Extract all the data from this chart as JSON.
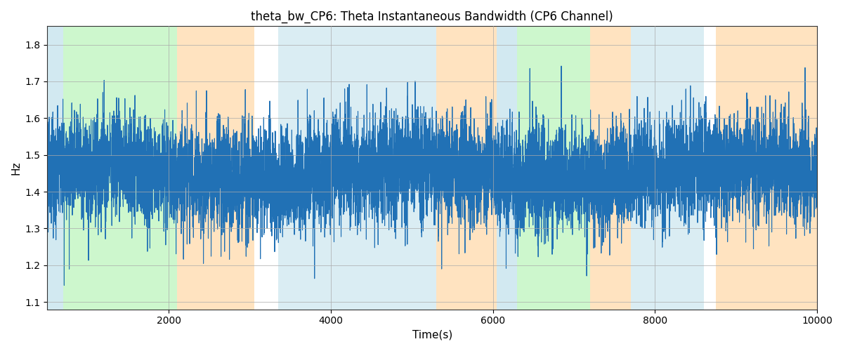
{
  "title": "theta_bw_CP6: Theta Instantaneous Bandwidth (CP6 Channel)",
  "xlabel": "Time(s)",
  "ylabel": "Hz",
  "xlim": [
    500,
    10000
  ],
  "ylim": [
    1.08,
    1.85
  ],
  "line_color": "#2171b5",
  "line_width": 0.8,
  "background_color": "#ffffff",
  "grid_color": "#aaaaaa",
  "figsize": [
    12,
    5
  ],
  "dpi": 100,
  "bands": [
    {
      "start": 500,
      "end": 700,
      "color": "#add8e6",
      "alpha": 0.55
    },
    {
      "start": 700,
      "end": 2100,
      "color": "#90ee90",
      "alpha": 0.45
    },
    {
      "start": 2100,
      "end": 3050,
      "color": "#ffd59e",
      "alpha": 0.65
    },
    {
      "start": 3350,
      "end": 5300,
      "color": "#add8e6",
      "alpha": 0.45
    },
    {
      "start": 5300,
      "end": 6050,
      "color": "#ffd59e",
      "alpha": 0.65
    },
    {
      "start": 6050,
      "end": 6300,
      "color": "#add8e6",
      "alpha": 0.55
    },
    {
      "start": 6300,
      "end": 7200,
      "color": "#90ee90",
      "alpha": 0.45
    },
    {
      "start": 7200,
      "end": 7700,
      "color": "#ffd59e",
      "alpha": 0.65
    },
    {
      "start": 7700,
      "end": 8600,
      "color": "#add8e6",
      "alpha": 0.45
    },
    {
      "start": 8750,
      "end": 10000,
      "color": "#ffd59e",
      "alpha": 0.65
    }
  ],
  "xticks": [
    2000,
    4000,
    6000,
    8000,
    10000
  ],
  "yticks": [
    1.1,
    1.2,
    1.3,
    1.4,
    1.5,
    1.6,
    1.7,
    1.8
  ],
  "seed": 42,
  "n_points": 9500,
  "t_start": 500,
  "t_end": 10000
}
